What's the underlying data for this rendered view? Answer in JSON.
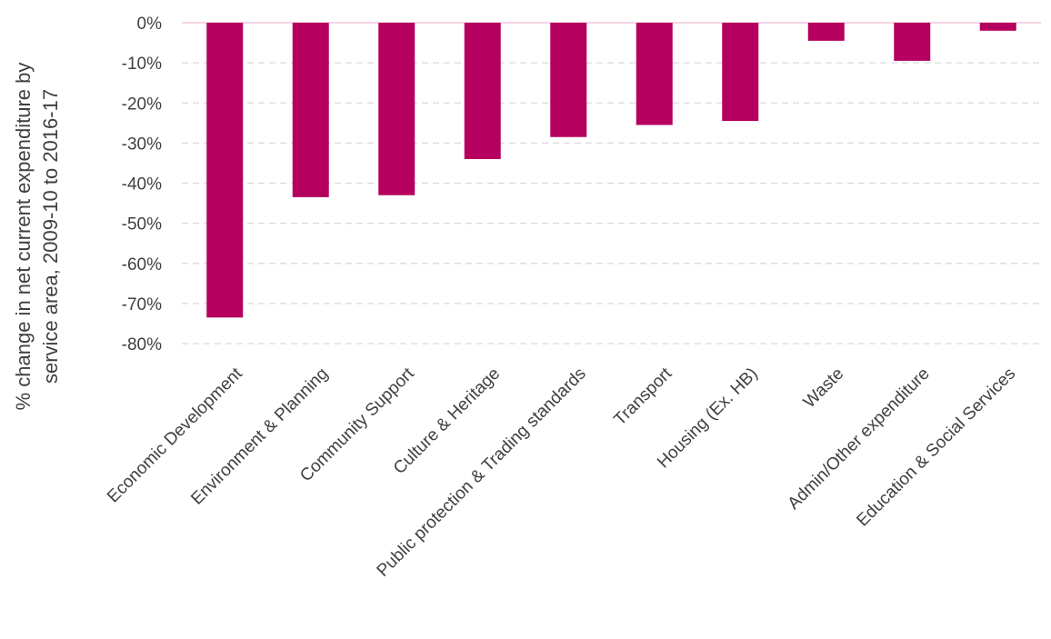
{
  "chart_data": {
    "type": "bar",
    "title": "",
    "xlabel": "",
    "ylabel_lines": [
      "% change in net current expenditure by",
      "service area, 2009-10 to 2016-17"
    ],
    "categories": [
      "Economic Development",
      "Environment & Planning",
      "Community Support",
      "Culture & Heritage",
      "Public protection & Trading standards",
      "Transport",
      "Housing (Ex. HB)",
      "Waste",
      "Admin/Other expenditure",
      "Education & Social Services"
    ],
    "series": [
      {
        "values": [
          -73.5,
          -43.5,
          -43,
          -34,
          -28.5,
          -25.5,
          -24.5,
          -4.5,
          -9.5,
          -2
        ]
      }
    ],
    "ylim": [
      -80,
      0
    ],
    "yticks": [
      0,
      -10,
      -20,
      -30,
      -40,
      -50,
      -60,
      -70,
      -80
    ],
    "ytick_labels": [
      "0%",
      "-10%",
      "-20%",
      "-30%",
      "-40%",
      "-50%",
      "-60%",
      "-70%",
      "-80%"
    ],
    "grid": true,
    "legend": "none",
    "colors": {
      "bar": "#b5005f",
      "grid": "#d9d9d9",
      "zero_line": "#f4c6dc",
      "text": "#404040"
    }
  }
}
